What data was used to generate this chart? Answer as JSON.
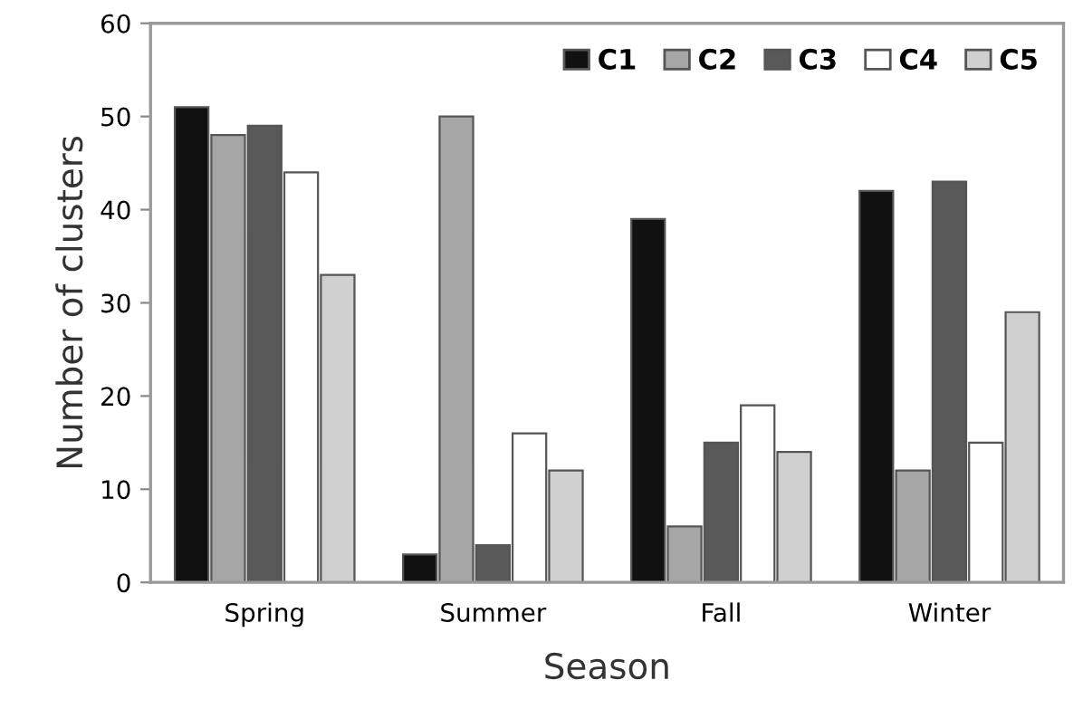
{
  "chart_data": {
    "type": "bar",
    "xlabel": "Season",
    "ylabel": "Number of clusters",
    "categories": [
      "Spring",
      "Summer",
      "Fall",
      "Winter"
    ],
    "series": [
      {
        "name": "C1",
        "color": "#111111",
        "values": [
          51,
          3,
          39,
          42
        ]
      },
      {
        "name": "C2",
        "color": "#a6a6a6",
        "values": [
          48,
          50,
          6,
          12
        ]
      },
      {
        "name": "C3",
        "color": "#595959",
        "values": [
          49,
          4,
          15,
          43
        ]
      },
      {
        "name": "C4",
        "color": "#ffffff",
        "values": [
          44,
          16,
          19,
          15
        ]
      },
      {
        "name": "C5",
        "color": "#d0d0d0",
        "values": [
          33,
          12,
          14,
          29
        ]
      }
    ],
    "ylim": [
      0,
      60
    ],
    "yticks": [
      0,
      10,
      20,
      30,
      40,
      50,
      60
    ],
    "grid": false,
    "legend": "top right"
  }
}
